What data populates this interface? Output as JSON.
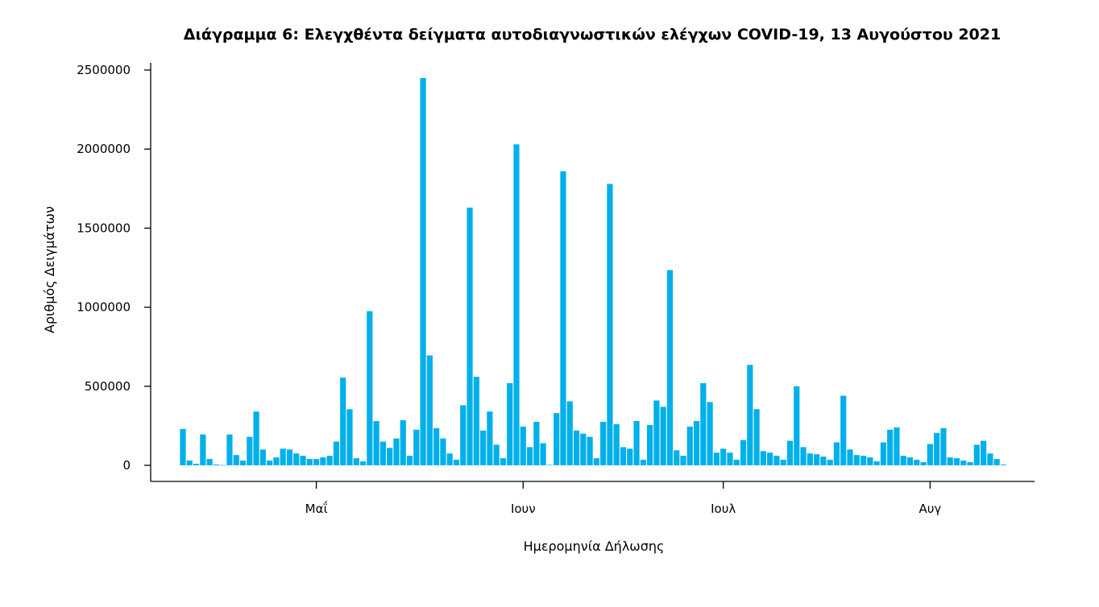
{
  "chart_data": {
    "type": "bar",
    "title": "Διάγραμμα 6: Ελεγχθέντα δείγματα αυτοδιαγνωστικών ελέγχων COVID-19, 13 Αυγούστου 2021",
    "xlabel": "Ημερομηνία Δήλωσης",
    "ylabel": "Αριθμός Δειγμάτων",
    "ylim": [
      0,
      2500000
    ],
    "yticks": [
      0,
      500000,
      1000000,
      1500000,
      2000000,
      2500000
    ],
    "ytick_labels": [
      "0",
      "500000",
      "1000000",
      "1500000",
      "2000000",
      "2500000"
    ],
    "start_date": "2021-04-11",
    "xticks": [
      {
        "day_index": 20,
        "label": "Μαΐ"
      },
      {
        "day_index": 51,
        "label": "Ιουν"
      },
      {
        "day_index": 81,
        "label": "Ιουλ"
      },
      {
        "day_index": 112,
        "label": "Αυγ"
      }
    ],
    "color": "#00b0ea",
    "grid": false,
    "values": [
      230000,
      30000,
      10000,
      195000,
      40000,
      5000,
      2000,
      195000,
      65000,
      30000,
      180000,
      340000,
      100000,
      30000,
      50000,
      105000,
      100000,
      75000,
      60000,
      40000,
      40000,
      50000,
      60000,
      150000,
      555000,
      355000,
      45000,
      25000,
      975000,
      280000,
      150000,
      110000,
      170000,
      285000,
      60000,
      225000,
      2450000,
      695000,
      235000,
      170000,
      75000,
      35000,
      380000,
      1630000,
      560000,
      220000,
      340000,
      130000,
      45000,
      520000,
      2030000,
      245000,
      115000,
      275000,
      140000,
      3000,
      330000,
      1860000,
      405000,
      220000,
      200000,
      180000,
      45000,
      275000,
      1780000,
      260000,
      115000,
      105000,
      280000,
      35000,
      255000,
      410000,
      370000,
      1235000,
      95000,
      60000,
      245000,
      280000,
      520000,
      400000,
      80000,
      105000,
      80000,
      35000,
      160000,
      635000,
      355000,
      90000,
      80000,
      60000,
      35000,
      155000,
      500000,
      115000,
      75000,
      70000,
      55000,
      35000,
      145000,
      440000,
      100000,
      65000,
      60000,
      50000,
      25000,
      145000,
      225000,
      240000,
      60000,
      50000,
      35000,
      20000,
      135000,
      205000,
      235000,
      50000,
      45000,
      30000,
      20000,
      130000,
      155000,
      75000,
      40000,
      5000
    ]
  }
}
